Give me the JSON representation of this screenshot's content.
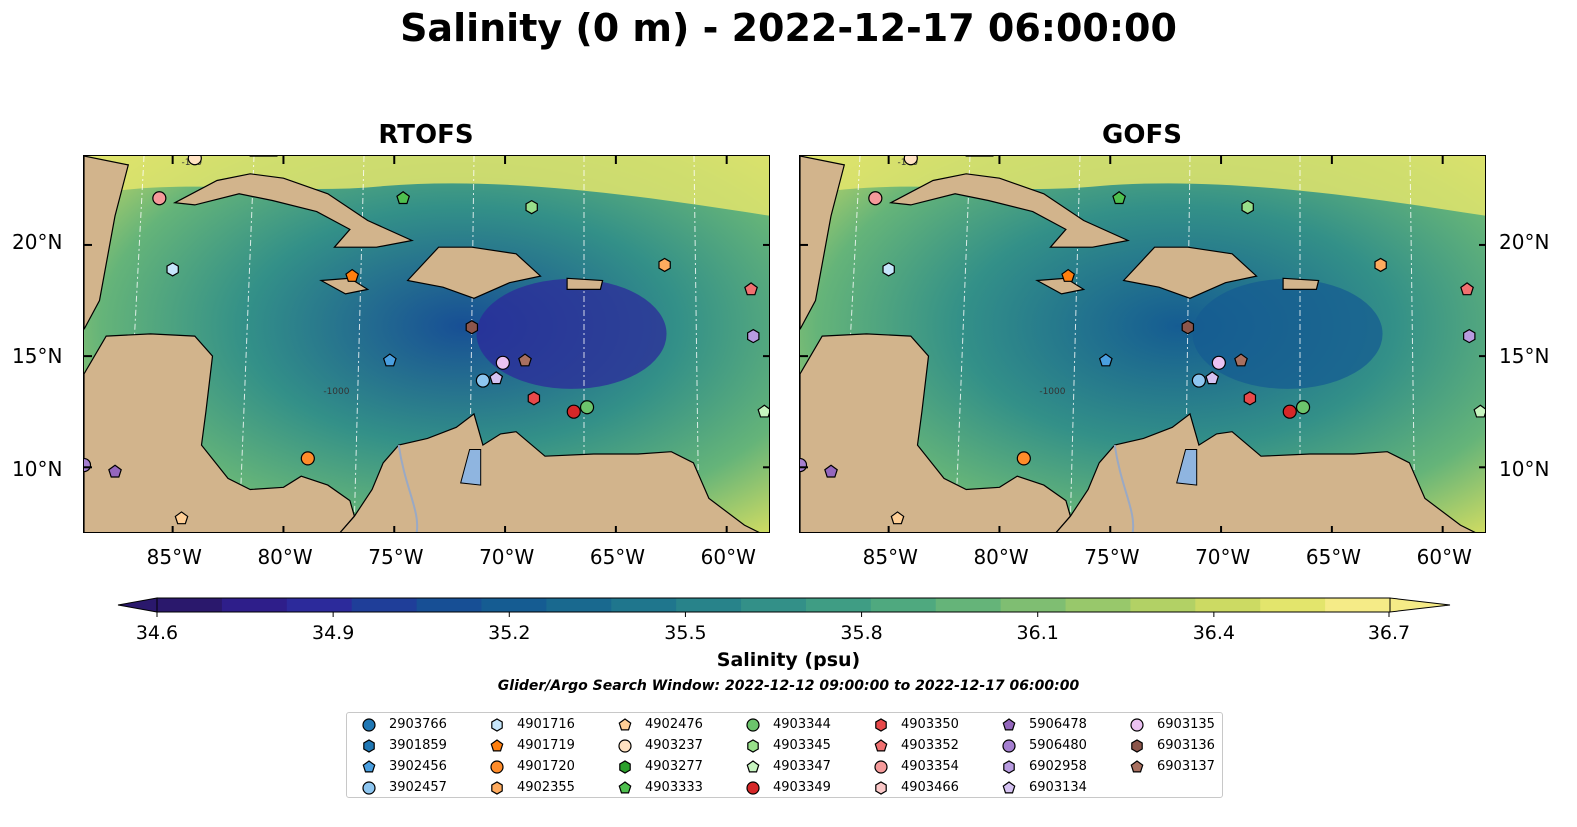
{
  "title": "Salinity (0 m) - 2022-12-17 06:00:00",
  "panels": [
    {
      "title": "RTOFS"
    },
    {
      "title": "GOFS"
    }
  ],
  "longitude_ticks": [
    "85°W",
    "80°W",
    "75°W",
    "70°W",
    "65°W",
    "60°W"
  ],
  "latitude_ticks": [
    "20°N",
    "15°N",
    "10°N"
  ],
  "contour_labels": [
    "-100",
    "-1000"
  ],
  "colorbar": {
    "label": "Salinity (psu)",
    "ticks": [
      "34.6",
      "34.9",
      "35.2",
      "35.5",
      "35.8",
      "36.1",
      "36.4",
      "36.7"
    ],
    "colors": [
      "#2a186c",
      "#2e1e8a",
      "#2c2a9b",
      "#1f3e99",
      "#174f95",
      "#155c92",
      "#19698f",
      "#1f768d",
      "#28838a",
      "#339088",
      "#3f9d84",
      "#4fa97f",
      "#65b479",
      "#7fbe72",
      "#98c86b",
      "#b2d165",
      "#ccda63",
      "#e3e56c",
      "#f5eb87"
    ],
    "range": [
      34.6,
      36.7
    ]
  },
  "search_window": "Glider/Argo Search Window: 2022-12-12 09:00:00 to 2022-12-17 06:00:00",
  "chart_data": {
    "type": "heatmap",
    "variable": "Salinity (0 m)",
    "units": "psu",
    "time": "2022-12-17 06:00:00",
    "models": [
      "RTOFS",
      "GOFS"
    ],
    "lon_range": [
      -89,
      -58
    ],
    "lat_range": [
      7,
      24
    ],
    "value_range": [
      34.6,
      36.7
    ],
    "floats": [
      {
        "id": "2903766",
        "marker": "circle",
        "color": "#1f77b4"
      },
      {
        "id": "3901859",
        "marker": "hexagon",
        "color": "#1f77b4"
      },
      {
        "id": "3902456",
        "marker": "pentagon",
        "color": "#4a9fe0",
        "lon": -75.2,
        "lat": 14.8
      },
      {
        "id": "3902457",
        "marker": "circle",
        "color": "#8ec6f0",
        "lon": -71.0,
        "lat": 13.9
      },
      {
        "id": "4901716",
        "marker": "hexagon",
        "color": "#c6e6fb",
        "lon": -85.0,
        "lat": 18.9
      },
      {
        "id": "4901719",
        "marker": "pentagon",
        "color": "#ff7f0e",
        "lon": -76.9,
        "lat": 18.6
      },
      {
        "id": "4901720",
        "marker": "circle",
        "color": "#ff8c2a",
        "lon": -78.9,
        "lat": 10.4
      },
      {
        "id": "4902355",
        "marker": "hexagon",
        "color": "#ffab5e",
        "lon": -62.8,
        "lat": 19.1
      },
      {
        "id": "4902476",
        "marker": "pentagon",
        "color": "#ffcf96",
        "lon": -84.6,
        "lat": 7.7
      },
      {
        "id": "4903237",
        "marker": "circle",
        "color": "#ffe2c2",
        "lon": -84.0,
        "lat": 23.9
      },
      {
        "id": "4903277",
        "marker": "hexagon",
        "color": "#2ca02c"
      },
      {
        "id": "4903333",
        "marker": "pentagon",
        "color": "#4fc04f",
        "lon": -74.6,
        "lat": 22.1
      },
      {
        "id": "4903344",
        "marker": "circle",
        "color": "#6cc46c",
        "lon": -66.3,
        "lat": 12.7
      },
      {
        "id": "4903345",
        "marker": "hexagon",
        "color": "#98df8a",
        "lon": -68.8,
        "lat": 21.7
      },
      {
        "id": "4903347",
        "marker": "pentagon",
        "color": "#c7f5c0",
        "lon": -58.3,
        "lat": 12.5
      },
      {
        "id": "4903349",
        "marker": "circle",
        "color": "#d62728",
        "lon": -66.9,
        "lat": 12.5
      },
      {
        "id": "4903350",
        "marker": "hexagon",
        "color": "#e8494a",
        "lon": -68.7,
        "lat": 13.1
      },
      {
        "id": "4903352",
        "marker": "pentagon",
        "color": "#f07070",
        "lon": -58.9,
        "lat": 18.0
      },
      {
        "id": "4903354",
        "marker": "circle",
        "color": "#f59a9a",
        "lon": -85.6,
        "lat": 22.1
      },
      {
        "id": "4903466",
        "marker": "hexagon",
        "color": "#fbc8c8"
      },
      {
        "id": "5906478",
        "marker": "pentagon",
        "color": "#9467bd",
        "lon": -87.6,
        "lat": 9.8
      },
      {
        "id": "5906480",
        "marker": "circle",
        "color": "#a57fd0",
        "lon": -89.0,
        "lat": 10.1
      },
      {
        "id": "6902958",
        "marker": "hexagon",
        "color": "#b89be0",
        "lon": -58.8,
        "lat": 15.9
      },
      {
        "id": "6903134",
        "marker": "pentagon",
        "color": "#d5c2f2",
        "lon": -70.4,
        "lat": 14.0
      },
      {
        "id": "6903135",
        "marker": "circle",
        "color": "#ebc2f2",
        "lon": -70.1,
        "lat": 14.7
      },
      {
        "id": "6903136",
        "marker": "hexagon",
        "color": "#8c564b",
        "lon": -71.5,
        "lat": 16.3
      },
      {
        "id": "6903137",
        "marker": "pentagon",
        "color": "#a87060",
        "lon": -69.1,
        "lat": 14.8
      }
    ]
  },
  "colors": {
    "land": "#d2b48c",
    "shelf_deep": "#2a186c",
    "lake": "#8fb5e0",
    "river": "#9aa9c4"
  }
}
